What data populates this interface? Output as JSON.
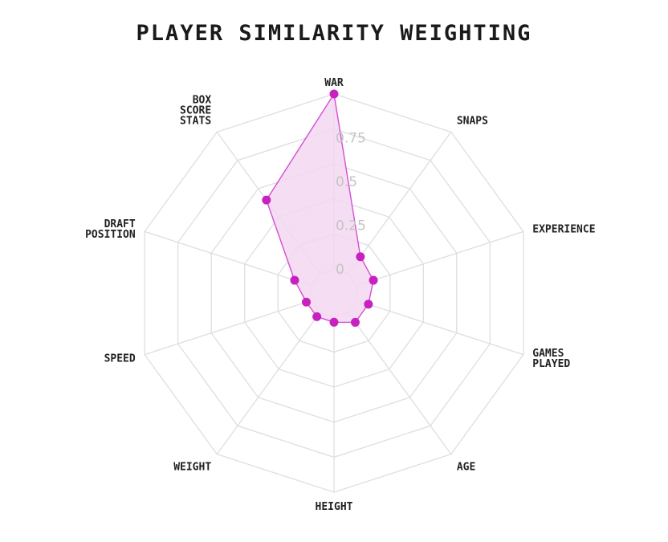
{
  "chart_data": {
    "type": "radar",
    "title": "PLAYER SIMILARITY WEIGHTING",
    "axes": [
      {
        "label": [
          "WAR"
        ]
      },
      {
        "label": [
          "SNAPS"
        ]
      },
      {
        "label": [
          "EXPERIENCE"
        ]
      },
      {
        "label": [
          "GAMES",
          "PLAYED"
        ]
      },
      {
        "label": [
          "AGE"
        ]
      },
      {
        "label": [
          "HEIGHT"
        ]
      },
      {
        "label": [
          "WEIGHT"
        ]
      },
      {
        "label": [
          "SPEED"
        ]
      },
      {
        "label": [
          "DRAFT",
          "POSITION"
        ]
      },
      {
        "label": [
          "BOX",
          "SCORE",
          "STATS"
        ]
      }
    ],
    "values": [
      1.0,
      0.12,
      0.1,
      0.07,
      0.07,
      0.03,
      0.03,
      0.03,
      0.1,
      0.52
    ],
    "ticks": [
      "0",
      "0.25",
      "0.5",
      "0.75"
    ],
    "tick_values": [
      0,
      0.25,
      0.5,
      0.75
    ],
    "inner_offset": 0.12,
    "range": [
      0,
      1
    ],
    "grid_levels": 5,
    "colors": {
      "line": "#d44ed0",
      "fill": "#f3d7f1",
      "point": "#c722bf",
      "grid": "#dedede",
      "tick_text": "#c4c4c4"
    }
  }
}
